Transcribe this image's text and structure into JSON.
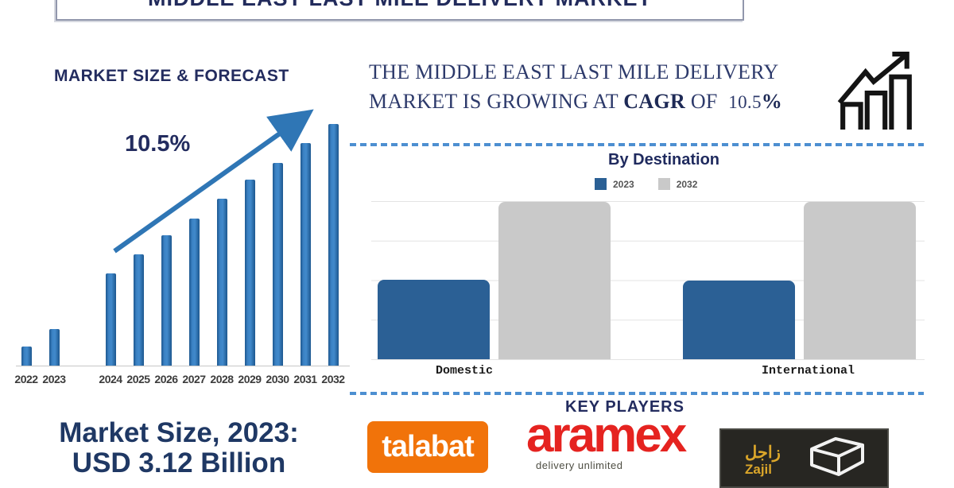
{
  "banner": {
    "title": "MIDDLE EAST LAST MILE DELIVERY MARKET"
  },
  "forecast_section": {
    "title": "MARKET SIZE & FORECAST",
    "growth_annotation": "10.5%"
  },
  "cagr_statement": {
    "line1": "THE MIDDLE EAST LAST MILE DELIVERY",
    "line2_prefix": "MARKET IS GROWING AT",
    "cagr_word": "CAGR",
    "of_word": "OF",
    "value": "10.5",
    "percent": "%"
  },
  "destination_section": {
    "title": "By Destination"
  },
  "market_size": {
    "line1": "Market Size, 2023:",
    "line2": "USD 3.12 Billion"
  },
  "key_players": {
    "title": "KEY PLAYERS",
    "talabat": {
      "name": "talabat",
      "bg_color": "#f1730a",
      "text_color": "#ffffff"
    },
    "aramex": {
      "name": "aramex",
      "tagline": "delivery unlimited",
      "color": "#e52320"
    },
    "zajil": {
      "arabic": "زاجل",
      "name": "Zajil",
      "bg_color": "#272622",
      "text_color": "#dba62a"
    }
  },
  "colors": {
    "navy": "#232c5f",
    "serif_navy": "#2d3a6b",
    "forecast_bar": "#2e75b6",
    "arrow_blue": "#2f76b5",
    "dashed_line": "#4d8fd1",
    "grid_line": "#e3e3e3",
    "axis_label_gray": "#3c3c3c"
  },
  "chart_data": [
    {
      "type": "bar",
      "title": "MARKET SIZE & FORECAST",
      "categories": [
        "2022",
        "2023",
        "2024",
        "2025",
        "2026",
        "2027",
        "2028",
        "2029",
        "2030",
        "2031",
        "2032"
      ],
      "values_relative_pct_of_max": [
        8,
        15,
        38,
        46,
        54,
        61,
        69,
        77,
        84,
        92,
        100
      ],
      "annotation": "10.5%",
      "bar_color": "#2e75b6",
      "notes": "bar values unlabeled in source; heights read as % of tallest (2032) bar; x-axis gap between 2023 and 2024"
    },
    {
      "type": "bar",
      "title": "By Destination",
      "categories": [
        "Domestic",
        "International"
      ],
      "series": [
        {
          "name": "2023",
          "color": "#2b6095",
          "values_pct_of_max": [
            50.5,
            50
          ]
        },
        {
          "name": "2032",
          "color": "#c9c9c9",
          "values_pct_of_max": [
            100,
            100
          ]
        }
      ],
      "legend_position": "top",
      "grid": "horizontal",
      "notes": "bar values unlabeled in source; heights read as % of 2032 bars"
    }
  ]
}
